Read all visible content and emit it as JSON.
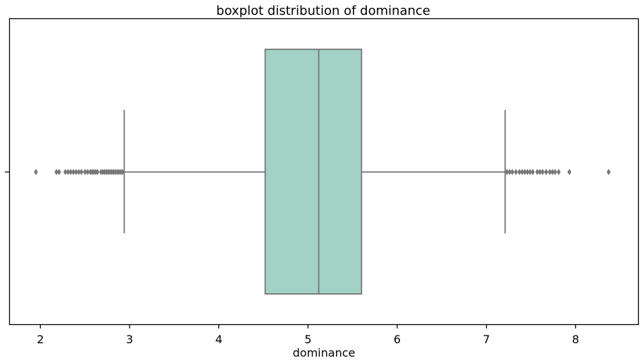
{
  "chart_data": {
    "type": "boxplot",
    "title": "boxplot distribution of dominance",
    "xlabel": "dominance",
    "ylabel": "",
    "xlim": [
      1.65,
      8.7
    ],
    "xticks": [
      "2",
      "3",
      "4",
      "5",
      "6",
      "7",
      "8"
    ],
    "grid": false,
    "box": {
      "whisker_low": 2.94,
      "q1": 4.52,
      "median": 5.12,
      "q3": 5.6,
      "whisker_high": 7.21
    },
    "outliers": [
      1.95,
      2.18,
      2.21,
      2.28,
      2.31,
      2.34,
      2.37,
      2.4,
      2.43,
      2.46,
      2.5,
      2.53,
      2.56,
      2.58,
      2.6,
      2.62,
      2.64,
      2.68,
      2.7,
      2.72,
      2.74,
      2.76,
      2.78,
      2.8,
      2.82,
      2.84,
      2.86,
      2.88,
      2.9,
      2.92,
      7.23,
      7.26,
      7.29,
      7.33,
      7.37,
      7.4,
      7.43,
      7.46,
      7.49,
      7.52,
      7.57,
      7.6,
      7.63,
      7.67,
      7.71,
      7.74,
      7.77,
      7.81,
      7.93,
      8.37
    ],
    "colors": {
      "box_fill": "#a2d1c5",
      "line": "#777777",
      "frame": "#000000"
    }
  }
}
